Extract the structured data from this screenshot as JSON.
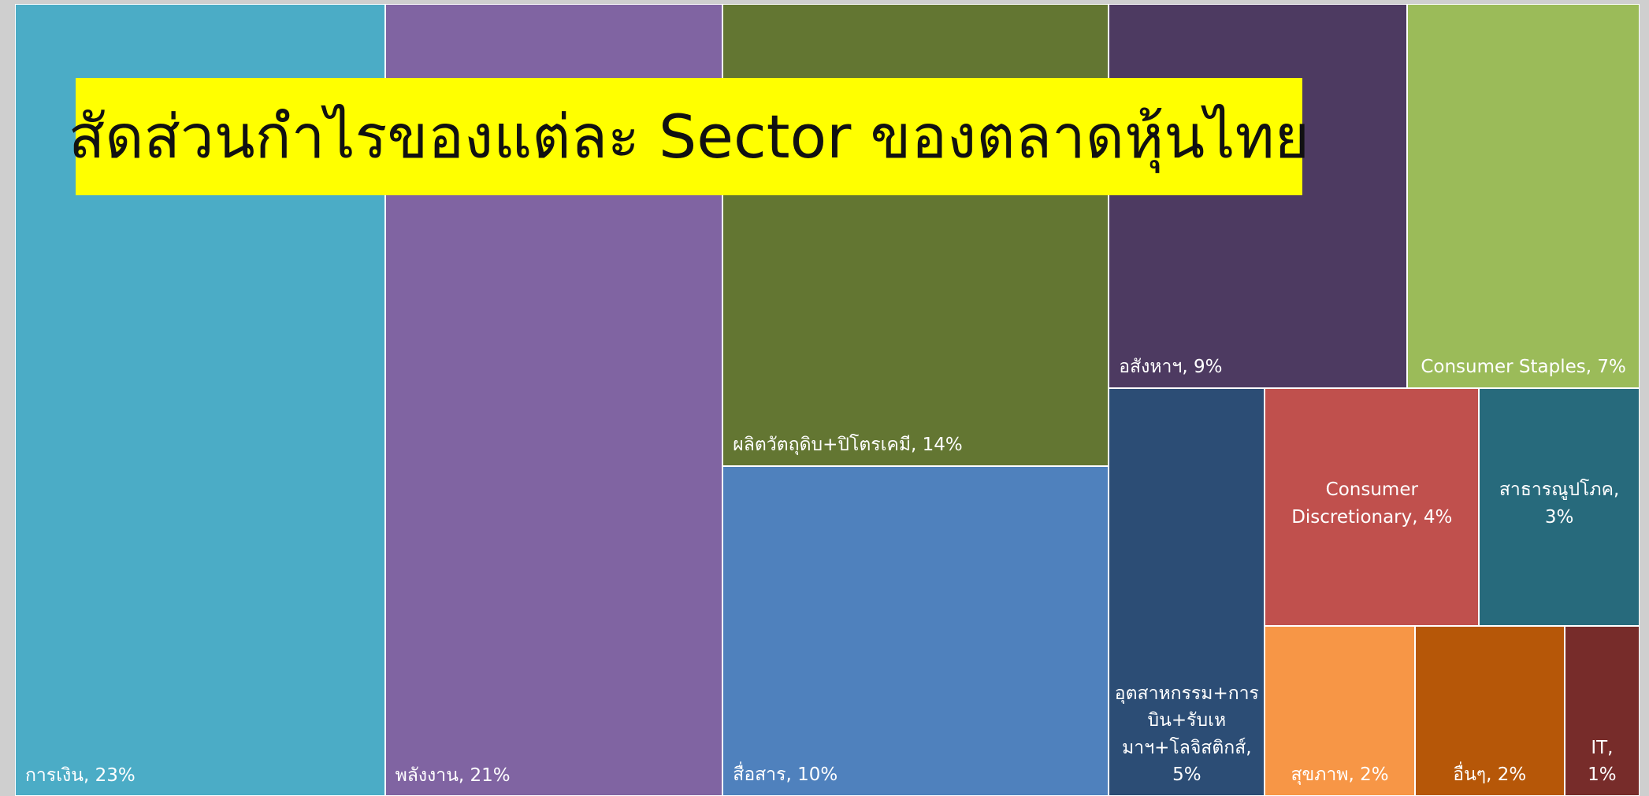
{
  "chart_data": {
    "type": "treemap",
    "title": "สัดส่วนกำไรของแต่ละ Sector ของตลาดหุ้นไทย",
    "categories": [
      "การเงิน, 23%",
      "พลังงาน, 21%",
      "ผลิตวัตถุดิบ+ปิโตรเคมี, 14%",
      "สื่อสาร, 10%",
      "อสังหาฯ, 9%",
      "Consumer Staples, 7%",
      "อุตสาหกรรม+การบิน+รับเหมาฯ+โลจิสติกส์, 5%",
      "Consumer Discretionary, 4%",
      "สาธารณูปโภค, 3%",
      "สุขภาพ, 2%",
      "อื่นๆ, 2%",
      "IT, 1%"
    ],
    "values": [
      23,
      21,
      14,
      10,
      9,
      7,
      5,
      4,
      3,
      2,
      2,
      1
    ],
    "colors": [
      "#4bacc6",
      "#8064a2",
      "#637632",
      "#4f81bd",
      "#4d3a61",
      "#9bbb59",
      "#2c4d75",
      "#c0504d",
      "#276a7c",
      "#f79646",
      "#b65708",
      "#772c2a"
    ]
  }
}
